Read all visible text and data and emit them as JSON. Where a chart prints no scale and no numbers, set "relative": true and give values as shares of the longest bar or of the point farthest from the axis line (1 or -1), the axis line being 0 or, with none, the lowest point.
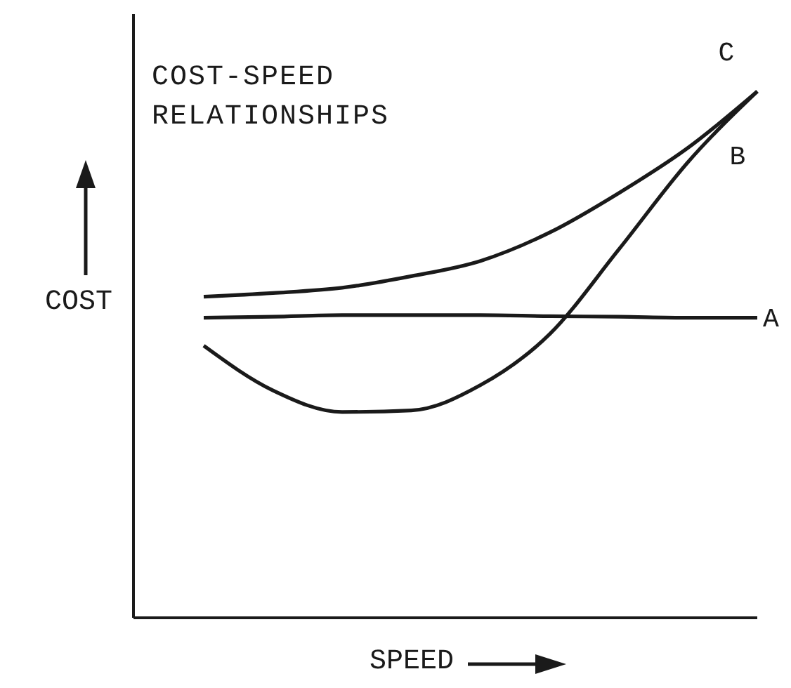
{
  "chart_data": {
    "type": "line",
    "title": "COST-SPEED RELATIONSHIPS",
    "xlabel": "SPEED",
    "ylabel": "COST",
    "relative": true,
    "categories": [
      null,
      null,
      null,
      null,
      null,
      null,
      null,
      null,
      null
    ],
    "series": [
      {
        "name": "A",
        "color": "#1a1a1a",
        "values": [
          0.57,
          0.572,
          0.575,
          0.575,
          0.575,
          0.573,
          0.572,
          0.57,
          0.57
        ]
      },
      {
        "name": "B",
        "color": "#1a1a1a",
        "values": [
          0.517,
          0.432,
          0.391,
          0.394,
          0.442,
          0.539,
          0.7,
          0.866,
          1
        ]
      },
      {
        "name": "C",
        "color": "#1a1a1a",
        "values": [
          0.61,
          0.617,
          0.627,
          0.649,
          0.678,
          0.732,
          0.807,
          0.893,
          1
        ]
      }
    ],
    "legend": false,
    "grid": false,
    "marker": "none",
    "line_style": "solid"
  }
}
